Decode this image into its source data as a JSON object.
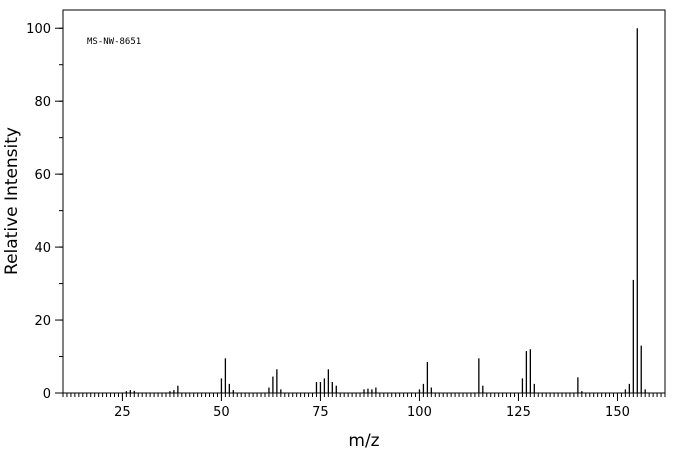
{
  "chart_data": {
    "type": "stick",
    "annotation": "MS-NW-8651",
    "xlabel": "m/z",
    "ylabel": "Relative Intensity",
    "color": "#000000",
    "x": [
      26,
      27,
      28,
      37,
      38,
      39,
      50,
      51,
      52,
      53,
      62,
      63,
      64,
      65,
      74,
      75,
      76,
      77,
      78,
      79,
      86,
      87,
      88,
      89,
      100,
      101,
      102,
      103,
      115,
      116,
      126,
      127,
      128,
      129,
      140,
      141,
      152,
      153,
      154,
      155,
      156,
      157
    ],
    "values": [
      0.5,
      0.8,
      0.6,
      0.5,
      0.8,
      2,
      4,
      9.5,
      2.5,
      0.8,
      1.5,
      4.5,
      6.5,
      1,
      3,
      3,
      4,
      6.5,
      3,
      2,
      1,
      1.2,
      1,
      1.5,
      1,
      2.5,
      8.5,
      1.5,
      9.5,
      2,
      4,
      11.5,
      12,
      2.5,
      4.3,
      0.5,
      1,
      2.5,
      31,
      100,
      13,
      1
    ],
    "xlim": [
      10,
      162
    ],
    "ylim": [
      0,
      105
    ],
    "xticks": [
      25,
      50,
      75,
      100,
      125,
      150
    ],
    "yticks": [
      0,
      20,
      40,
      60,
      80,
      100
    ],
    "xminor": 1,
    "yminor": 10
  }
}
